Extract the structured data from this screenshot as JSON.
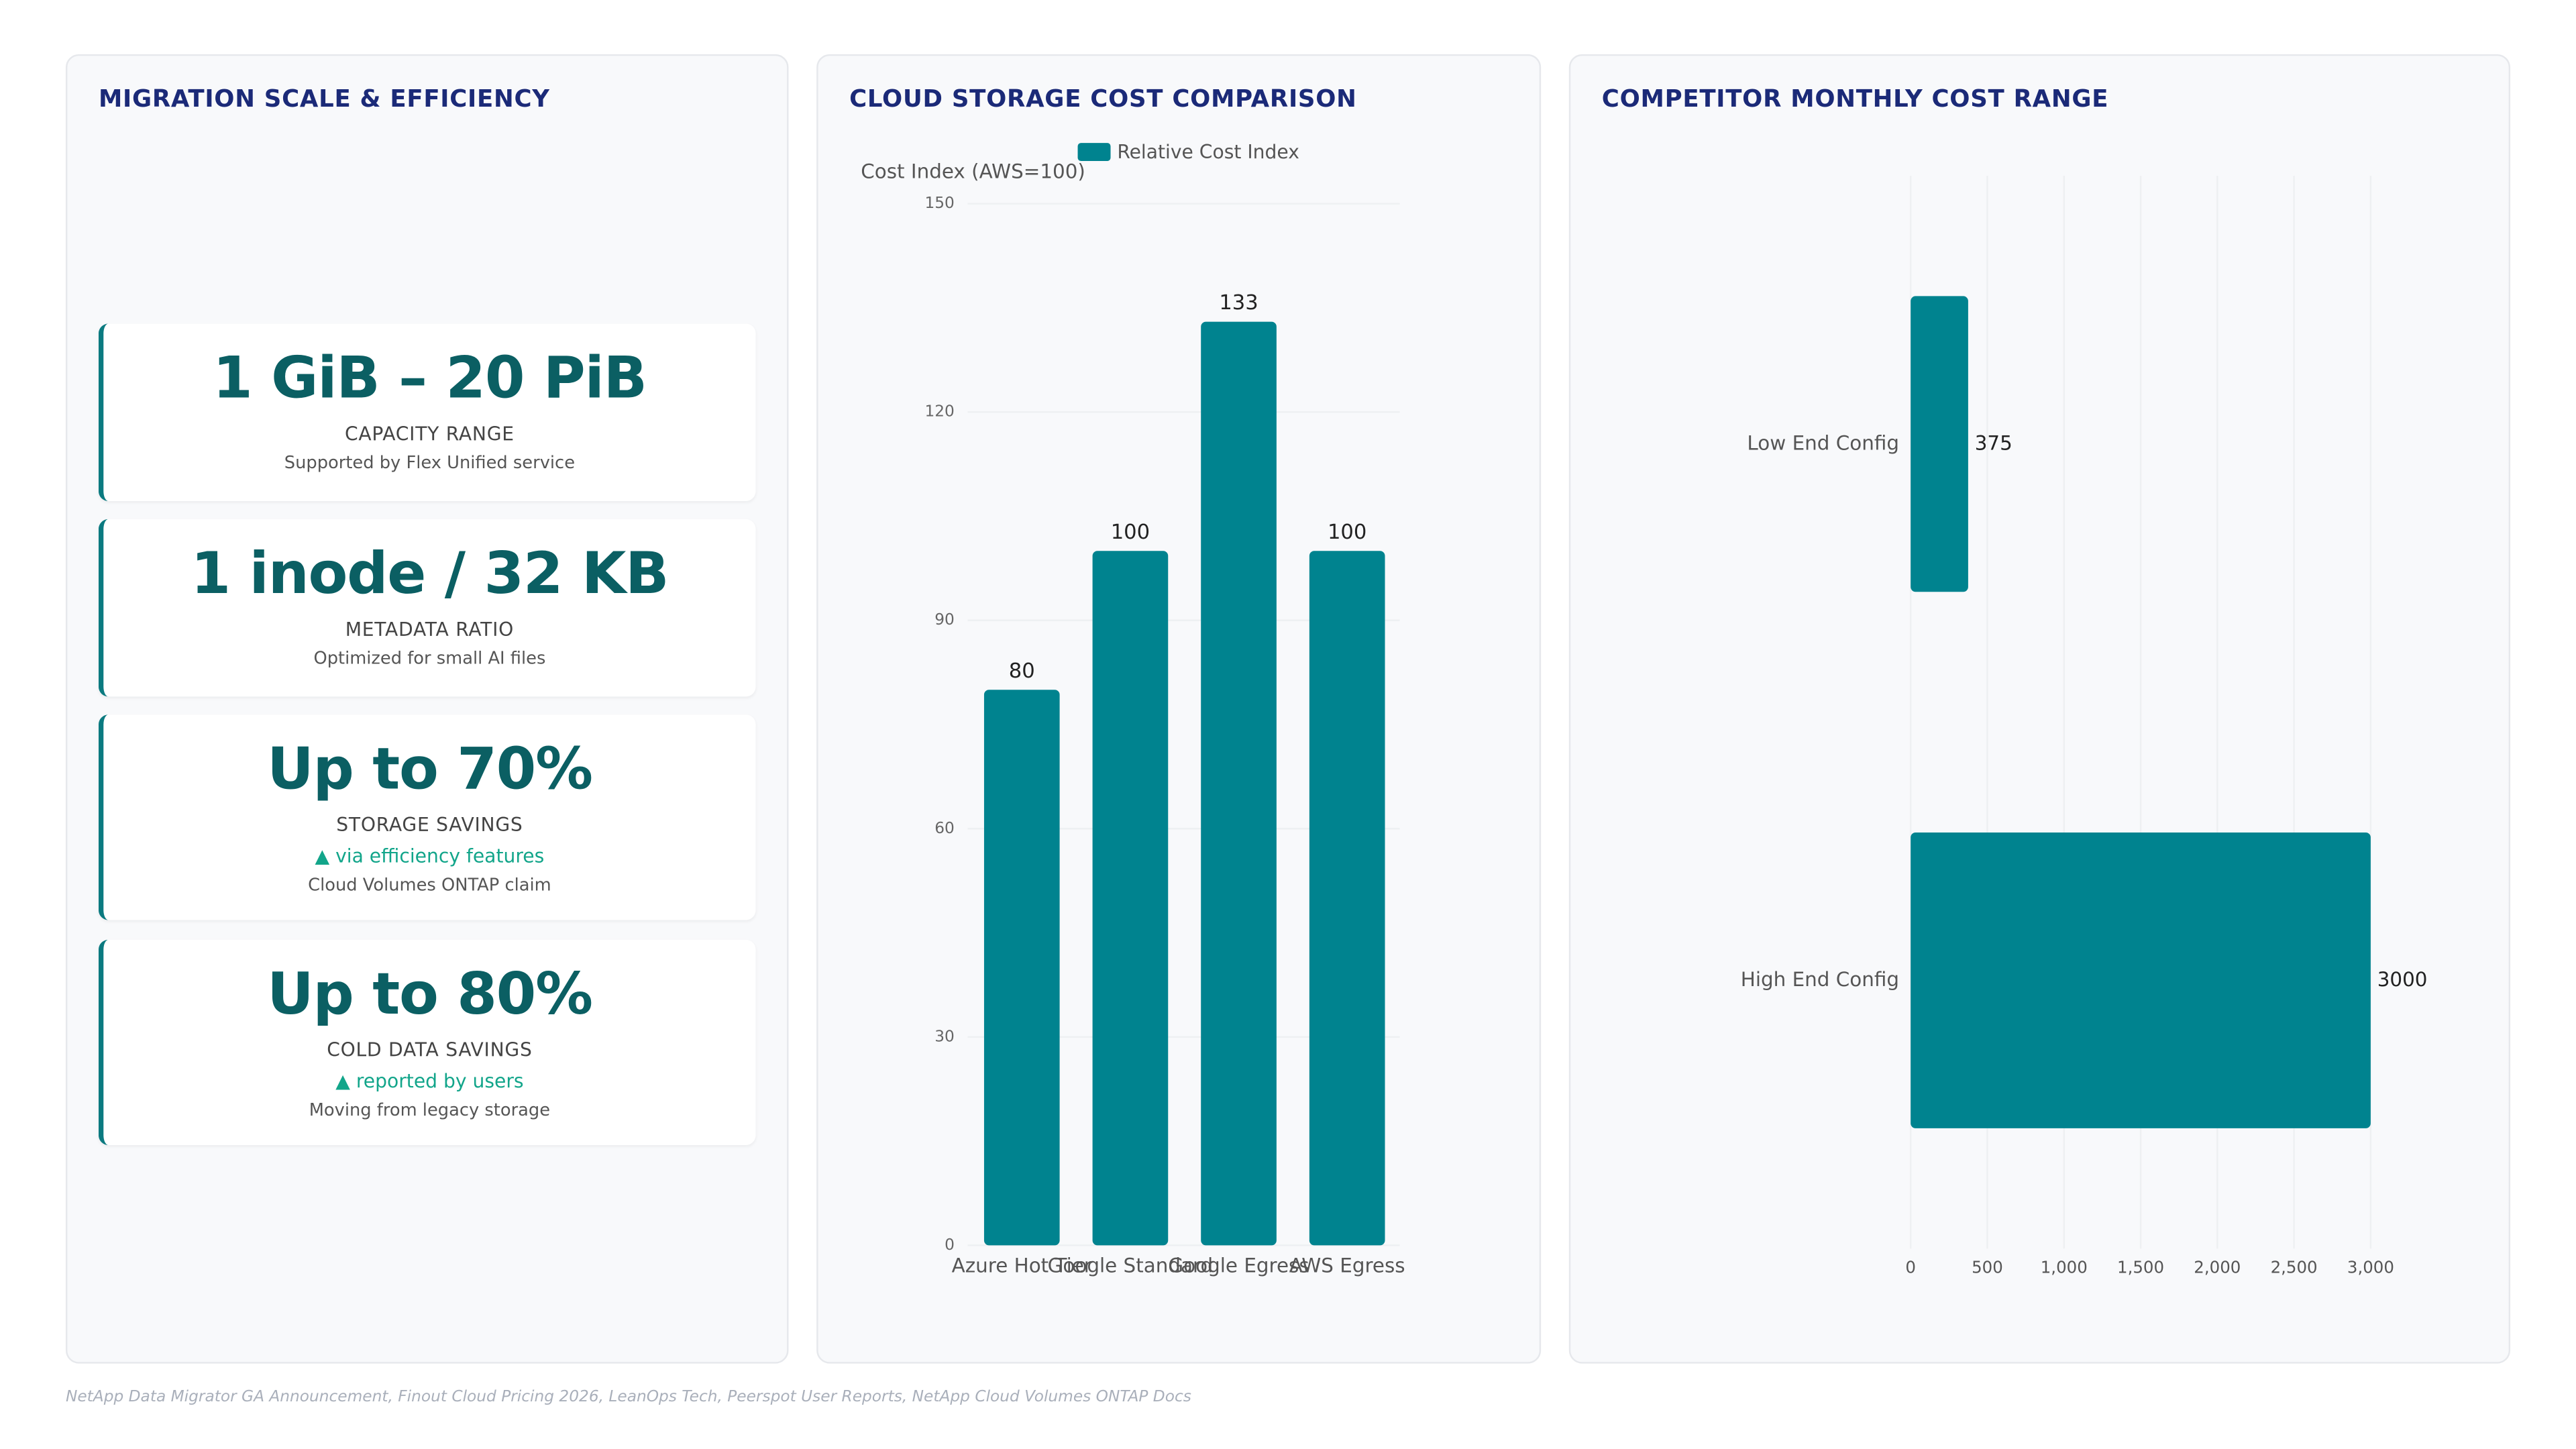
{
  "kpi_panel": {
    "title": "MIGRATION SCALE & EFFICIENCY",
    "cards": [
      {
        "value": "1 GiB – 20 PiB",
        "label": "CAPACITY RANGE",
        "note": "Supported by Flex Unified service"
      },
      {
        "value": "1 inode / 32 KB",
        "label": "METADATA RATIO",
        "note": "Optimized for small AI files"
      },
      {
        "value": "Up to 70%",
        "label": "STORAGE SAVINGS",
        "trend": "▲ via efficiency features",
        "note": "Cloud Volumes ONTAP claim"
      },
      {
        "value": "Up to 80%",
        "label": "COLD DATA SAVINGS",
        "trend": "▲ reported by users",
        "note": "Moving from legacy storage"
      }
    ]
  },
  "chart_data": [
    {
      "type": "bar",
      "title": "CLOUD STORAGE COST COMPARISON",
      "y_label": "Cost Index (AWS=100)",
      "categories": [
        "Azure Hot Tier",
        "Google Standard",
        "Google Egress",
        "AWS Egress"
      ],
      "series": [
        {
          "name": "Relative Cost Index",
          "color": "#00838f",
          "values": [
            80,
            100,
            133,
            100
          ]
        }
      ],
      "ylim": [
        0,
        150
      ],
      "yticks": [
        0,
        30,
        60,
        90,
        120,
        150
      ],
      "grid": true
    },
    {
      "type": "hbar",
      "title": "COMPETITOR MONTHLY COST RANGE",
      "categories": [
        "Low End Config",
        "High End Config"
      ],
      "values": [
        375,
        3000
      ],
      "color": "#00838f",
      "xlim": [
        0,
        3000
      ],
      "xticks": [
        0,
        500,
        {
          "value": 1000,
          "label": "1,000"
        },
        {
          "value": 1500,
          "label": "1,500"
        },
        {
          "value": 2000,
          "label": "2,000"
        },
        {
          "value": 2500,
          "label": "2,500"
        },
        {
          "value": 3000,
          "label": "3,000"
        }
      ],
      "grid": true
    }
  ],
  "footer": {
    "source": "NetApp Data Migrator GA Announcement, Finout Cloud Pricing 2026, LeanOps Tech, Peerspot User Reports, NetApp Cloud Volumes ONTAP Docs"
  }
}
